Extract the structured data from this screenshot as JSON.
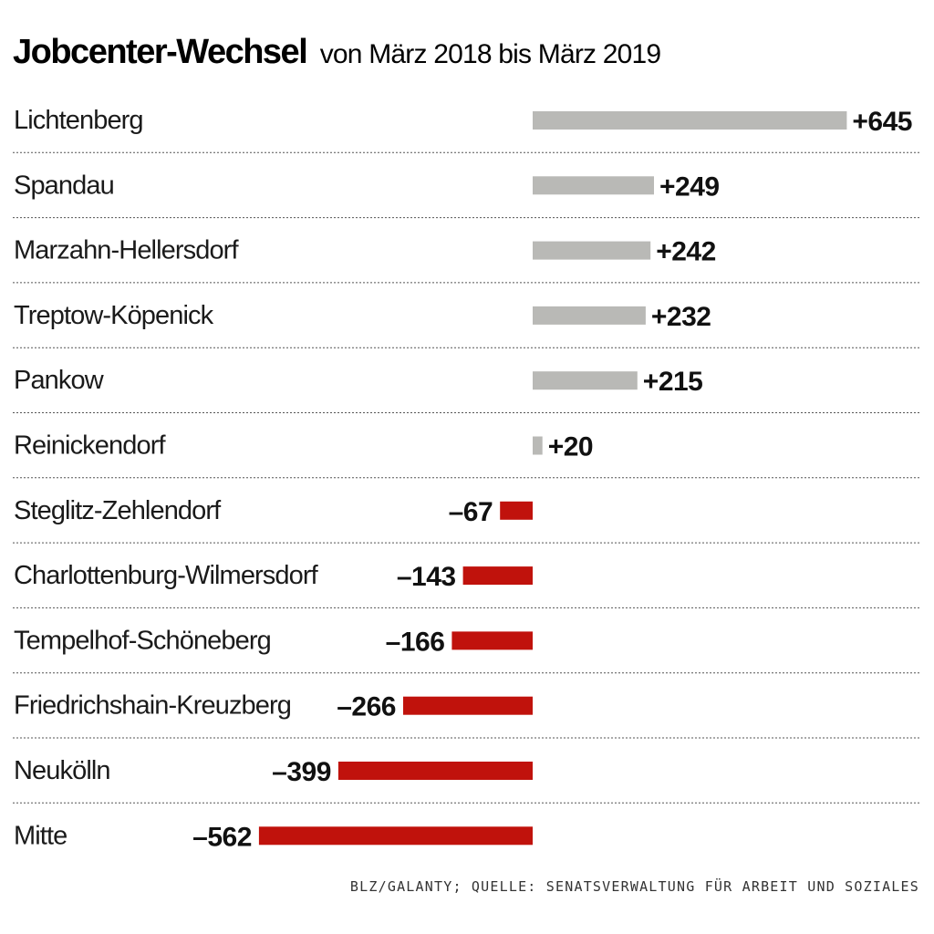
{
  "chart_data": {
    "type": "bar",
    "orientation": "horizontal",
    "title": "Jobcenter-Wechsel",
    "subtitle": "von März 2018 bis März 2019",
    "categories": [
      "Lichtenberg",
      "Spandau",
      "Marzahn-Hellersdorf",
      "Treptow-Köpenick",
      "Pankow",
      "Reinickendorf",
      "Steglitz-Zehlendorf",
      "Charlottenburg-Wilmersdorf",
      "Tempelhof-Schöneberg",
      "Friedrichshain-Kreuzberg",
      "Neukölln",
      "Mitte"
    ],
    "values": [
      645,
      249,
      242,
      232,
      215,
      20,
      -67,
      -143,
      -166,
      -266,
      -399,
      -562
    ],
    "value_labels": [
      "+645",
      "+249",
      "+242",
      "+232",
      "+215",
      "+20",
      "–67",
      "–143",
      "–166",
      "–266",
      "–399",
      "–562"
    ],
    "colors": {
      "positive": "#b9b9b6",
      "negative": "#c0120c"
    },
    "source": "BLZ/GALANTY; QUELLE: SENATSVERWALTUNG FÜR ARBEIT UND SOZIALES",
    "grid": false,
    "legend": "none"
  }
}
